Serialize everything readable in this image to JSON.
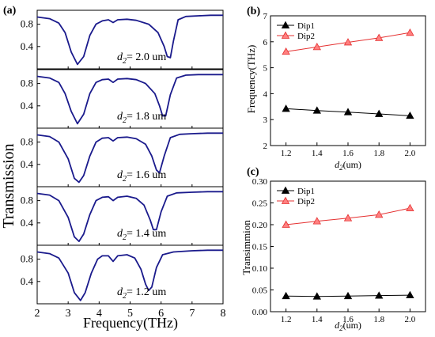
{
  "chart_data": [
    {
      "type": "line",
      "panel_label": "(a)",
      "xlabel": "Frequency(THz)",
      "ylabel": "Transmission",
      "xlim": [
        2,
        8
      ],
      "ylim": [
        0,
        1.05
      ],
      "x_ticks": [
        2,
        3,
        4,
        5,
        6,
        7,
        8
      ],
      "y_ticks": [
        0.4,
        0.8
      ],
      "line_color": "#1a1a8c",
      "subplots": [
        {
          "annotation": "d",
          "annotation_sub": "2",
          "annotation_value": "= 2.0 um",
          "x": [
            2.0,
            2.4,
            2.7,
            2.9,
            3.1,
            3.3,
            3.5,
            3.7,
            3.9,
            4.1,
            4.3,
            4.45,
            4.6,
            4.9,
            5.2,
            5.6,
            5.9,
            6.1,
            6.2,
            6.3,
            6.4,
            6.55,
            6.8,
            7.2,
            7.6,
            8.0
          ],
          "y": [
            0.93,
            0.9,
            0.82,
            0.65,
            0.3,
            0.08,
            0.22,
            0.6,
            0.8,
            0.86,
            0.88,
            0.83,
            0.88,
            0.89,
            0.87,
            0.8,
            0.65,
            0.4,
            0.22,
            0.2,
            0.5,
            0.88,
            0.94,
            0.95,
            0.96,
            0.96
          ]
        },
        {
          "annotation": "d",
          "annotation_sub": "2",
          "annotation_value": "= 1.8 um",
          "x": [
            2.0,
            2.4,
            2.7,
            2.9,
            3.1,
            3.3,
            3.5,
            3.7,
            3.9,
            4.1,
            4.3,
            4.45,
            4.6,
            4.9,
            5.2,
            5.5,
            5.8,
            5.95,
            6.05,
            6.15,
            6.3,
            6.5,
            6.8,
            7.2,
            7.6,
            8.0
          ],
          "y": [
            0.93,
            0.9,
            0.82,
            0.62,
            0.3,
            0.08,
            0.25,
            0.62,
            0.82,
            0.87,
            0.88,
            0.82,
            0.88,
            0.89,
            0.87,
            0.8,
            0.62,
            0.4,
            0.22,
            0.22,
            0.6,
            0.9,
            0.95,
            0.96,
            0.96,
            0.96
          ]
        },
        {
          "annotation": "d",
          "annotation_sub": "2",
          "annotation_value": "= 1.6 um",
          "x": [
            2.0,
            2.4,
            2.7,
            3.0,
            3.2,
            3.35,
            3.5,
            3.7,
            3.9,
            4.1,
            4.3,
            4.45,
            4.6,
            4.9,
            5.2,
            5.5,
            5.7,
            5.85,
            5.95,
            6.1,
            6.3,
            6.6,
            7.0,
            7.5,
            8.0
          ],
          "y": [
            0.93,
            0.9,
            0.8,
            0.5,
            0.15,
            0.08,
            0.2,
            0.55,
            0.8,
            0.87,
            0.88,
            0.82,
            0.88,
            0.89,
            0.86,
            0.76,
            0.55,
            0.3,
            0.25,
            0.55,
            0.88,
            0.94,
            0.95,
            0.96,
            0.96
          ]
        },
        {
          "annotation": "d",
          "annotation_sub": "2",
          "annotation_value": "= 1.4 um",
          "x": [
            2.0,
            2.4,
            2.7,
            3.0,
            3.2,
            3.35,
            3.5,
            3.7,
            3.9,
            4.1,
            4.3,
            4.45,
            4.6,
            4.9,
            5.2,
            5.45,
            5.65,
            5.75,
            5.85,
            6.0,
            6.2,
            6.5,
            7.0,
            7.5,
            8.0
          ],
          "y": [
            0.93,
            0.9,
            0.8,
            0.5,
            0.15,
            0.07,
            0.2,
            0.55,
            0.8,
            0.86,
            0.87,
            0.8,
            0.86,
            0.88,
            0.84,
            0.72,
            0.45,
            0.28,
            0.28,
            0.6,
            0.88,
            0.94,
            0.95,
            0.96,
            0.96
          ]
        },
        {
          "annotation": "d",
          "annotation_sub": "2",
          "annotation_value": "= 1.2 um",
          "x": [
            2.0,
            2.4,
            2.7,
            3.0,
            3.2,
            3.4,
            3.55,
            3.75,
            3.95,
            4.1,
            4.3,
            4.45,
            4.6,
            4.9,
            5.15,
            5.35,
            5.5,
            5.6,
            5.7,
            5.85,
            6.05,
            6.4,
            7.0,
            7.5,
            8.0
          ],
          "y": [
            0.93,
            0.9,
            0.82,
            0.55,
            0.2,
            0.06,
            0.2,
            0.55,
            0.8,
            0.86,
            0.86,
            0.76,
            0.86,
            0.88,
            0.82,
            0.62,
            0.35,
            0.24,
            0.3,
            0.65,
            0.88,
            0.93,
            0.95,
            0.96,
            0.96
          ]
        }
      ]
    },
    {
      "type": "line",
      "panel_label": "(b)",
      "xlabel_main": "d",
      "xlabel_sub": "2",
      "xlabel_rest": "(um)",
      "ylabel": "Frequency(THz)",
      "xlim": [
        1.1,
        2.1
      ],
      "ylim": [
        2,
        7
      ],
      "x_ticks": [
        1.2,
        1.4,
        1.6,
        1.8,
        2.0
      ],
      "y_ticks": [
        2,
        3,
        4,
        5,
        6,
        7
      ],
      "legend_position": "top-left",
      "x": [
        1.2,
        1.4,
        1.6,
        1.8,
        2.0
      ],
      "series": [
        {
          "name": "Dip1",
          "color": "#000000",
          "values": [
            3.42,
            3.35,
            3.29,
            3.22,
            3.15
          ]
        },
        {
          "name": "Dip2",
          "color": "#e53030",
          "values": [
            5.62,
            5.8,
            5.98,
            6.15,
            6.35
          ]
        }
      ]
    },
    {
      "type": "line",
      "panel_label": "(c)",
      "xlabel_main": "d",
      "xlabel_sub": "2",
      "xlabel_rest": "(um)",
      "ylabel": "Transimmion",
      "xlim": [
        1.1,
        2.1
      ],
      "ylim": [
        0,
        0.3
      ],
      "x_ticks": [
        1.2,
        1.4,
        1.6,
        1.8,
        2.0
      ],
      "y_ticks": [
        0.0,
        0.05,
        0.1,
        0.15,
        0.2,
        0.25,
        0.3
      ],
      "y_tick_labels": [
        "0.00",
        "0.05",
        "0.10",
        "0.15",
        "0.20",
        "0.25",
        "0.30"
      ],
      "legend_position": "top-left",
      "x": [
        1.2,
        1.4,
        1.6,
        1.8,
        2.0
      ],
      "series": [
        {
          "name": "Dip1",
          "color": "#000000",
          "values": [
            0.036,
            0.035,
            0.036,
            0.037,
            0.038
          ]
        },
        {
          "name": "Dip2",
          "color": "#e53030",
          "values": [
            0.2,
            0.208,
            0.215,
            0.223,
            0.238
          ]
        }
      ]
    }
  ]
}
